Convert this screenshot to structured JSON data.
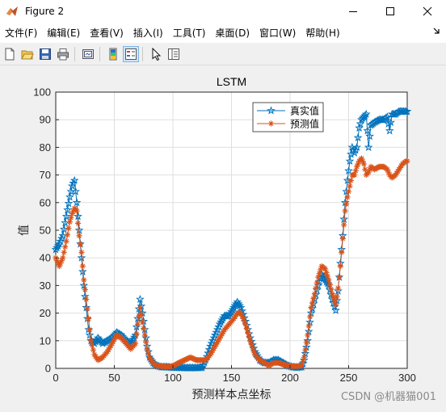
{
  "window": {
    "title": "Figure 2"
  },
  "menu": {
    "items": [
      "文件(F)",
      "编辑(E)",
      "查看(V)",
      "插入(I)",
      "工具(T)",
      "桌面(D)",
      "窗口(W)",
      "帮助(H)"
    ]
  },
  "watermark": "CSDN @机器猫001",
  "chart_data": {
    "type": "line",
    "title": "LSTM",
    "xlabel": "预测样本点坐标",
    "ylabel": "值",
    "xlim": [
      0,
      300
    ],
    "ylim": [
      0,
      100
    ],
    "xticks": [
      0,
      50,
      100,
      150,
      200,
      250,
      300
    ],
    "yticks": [
      0,
      10,
      20,
      30,
      40,
      50,
      60,
      70,
      80,
      90,
      100
    ],
    "grid": true,
    "legend_location": "top-right",
    "series": [
      {
        "name": "真实值",
        "color": "#0072BD",
        "marker": "pentagram",
        "points": [
          [
            0,
            43
          ],
          [
            3,
            45
          ],
          [
            6,
            48
          ],
          [
            9,
            55
          ],
          [
            12,
            62
          ],
          [
            14,
            66
          ],
          [
            16,
            68
          ],
          [
            18,
            60
          ],
          [
            20,
            50
          ],
          [
            22,
            40
          ],
          [
            24,
            30
          ],
          [
            26,
            22
          ],
          [
            28,
            14
          ],
          [
            30,
            10
          ],
          [
            33,
            9
          ],
          [
            36,
            11
          ],
          [
            40,
            9
          ],
          [
            44,
            10
          ],
          [
            48,
            11
          ],
          [
            52,
            13
          ],
          [
            56,
            12
          ],
          [
            60,
            10
          ],
          [
            64,
            9
          ],
          [
            68,
            12
          ],
          [
            70,
            18
          ],
          [
            72,
            25
          ],
          [
            74,
            20
          ],
          [
            76,
            14
          ],
          [
            78,
            8
          ],
          [
            80,
            4
          ],
          [
            83,
            2
          ],
          [
            86,
            1
          ],
          [
            90,
            0.5
          ],
          [
            95,
            0.5
          ],
          [
            100,
            0.3
          ],
          [
            105,
            0.3
          ],
          [
            110,
            0.2
          ],
          [
            115,
            0.2
          ],
          [
            120,
            0.2
          ],
          [
            125,
            0.3
          ],
          [
            128,
            3
          ],
          [
            132,
            8
          ],
          [
            136,
            12
          ],
          [
            140,
            16
          ],
          [
            144,
            19
          ],
          [
            148,
            19
          ],
          [
            152,
            22
          ],
          [
            155,
            24
          ],
          [
            158,
            22
          ],
          [
            162,
            17
          ],
          [
            166,
            11
          ],
          [
            170,
            6
          ],
          [
            174,
            3
          ],
          [
            178,
            2
          ],
          [
            182,
            2
          ],
          [
            186,
            3
          ],
          [
            190,
            3
          ],
          [
            194,
            2
          ],
          [
            198,
            1
          ],
          [
            202,
            0.5
          ],
          [
            206,
            0.3
          ],
          [
            210,
            0.5
          ],
          [
            212,
            3
          ],
          [
            215,
            10
          ],
          [
            218,
            20
          ],
          [
            221,
            25
          ],
          [
            224,
            30
          ],
          [
            227,
            34
          ],
          [
            230,
            32
          ],
          [
            233,
            30
          ],
          [
            236,
            25
          ],
          [
            239,
            21
          ],
          [
            241,
            28
          ],
          [
            243,
            38
          ],
          [
            245,
            48
          ],
          [
            247,
            60
          ],
          [
            249,
            68
          ],
          [
            251,
            75
          ],
          [
            253,
            80
          ],
          [
            255,
            78
          ],
          [
            257,
            80
          ],
          [
            259,
            87
          ],
          [
            261,
            90
          ],
          [
            263,
            91
          ],
          [
            265,
            92
          ],
          [
            267,
            80
          ],
          [
            269,
            88
          ],
          [
            272,
            89
          ],
          [
            276,
            90
          ],
          [
            280,
            90
          ],
          [
            283,
            91
          ],
          [
            285,
            86
          ],
          [
            287,
            92
          ],
          [
            290,
            92
          ],
          [
            293,
            93
          ],
          [
            296,
            93
          ],
          [
            299,
            93
          ]
        ]
      },
      {
        "name": "预测值",
        "color": "#D95319",
        "marker": "asterisk",
        "points": [
          [
            0,
            40
          ],
          [
            3,
            37
          ],
          [
            6,
            40
          ],
          [
            9,
            46
          ],
          [
            12,
            53
          ],
          [
            14,
            56
          ],
          [
            16,
            58
          ],
          [
            18,
            57
          ],
          [
            20,
            48
          ],
          [
            22,
            42
          ],
          [
            24,
            32
          ],
          [
            26,
            25
          ],
          [
            28,
            18
          ],
          [
            30,
            10
          ],
          [
            33,
            5
          ],
          [
            36,
            3
          ],
          [
            40,
            4
          ],
          [
            44,
            6
          ],
          [
            48,
            9
          ],
          [
            52,
            12
          ],
          [
            56,
            11
          ],
          [
            60,
            9
          ],
          [
            64,
            7
          ],
          [
            68,
            9
          ],
          [
            70,
            16
          ],
          [
            72,
            22
          ],
          [
            74,
            17
          ],
          [
            76,
            12
          ],
          [
            78,
            7
          ],
          [
            80,
            4
          ],
          [
            83,
            2
          ],
          [
            86,
            1
          ],
          [
            90,
            0.8
          ],
          [
            95,
            0.6
          ],
          [
            100,
            0.8
          ],
          [
            105,
            2
          ],
          [
            110,
            3
          ],
          [
            115,
            4
          ],
          [
            120,
            3
          ],
          [
            125,
            3
          ],
          [
            128,
            3
          ],
          [
            132,
            5
          ],
          [
            136,
            8
          ],
          [
            140,
            11
          ],
          [
            144,
            14
          ],
          [
            148,
            16
          ],
          [
            152,
            18
          ],
          [
            155,
            20
          ],
          [
            158,
            20
          ],
          [
            162,
            16
          ],
          [
            166,
            10
          ],
          [
            170,
            5
          ],
          [
            174,
            3
          ],
          [
            178,
            2
          ],
          [
            182,
            1
          ],
          [
            186,
            2
          ],
          [
            190,
            2
          ],
          [
            194,
            1.5
          ],
          [
            198,
            1
          ],
          [
            202,
            0.8
          ],
          [
            206,
            0.8
          ],
          [
            210,
            1
          ],
          [
            212,
            4
          ],
          [
            215,
            12
          ],
          [
            218,
            22
          ],
          [
            221,
            27
          ],
          [
            224,
            33
          ],
          [
            227,
            37
          ],
          [
            230,
            36
          ],
          [
            233,
            32
          ],
          [
            236,
            27
          ],
          [
            239,
            23
          ],
          [
            241,
            29
          ],
          [
            243,
            37
          ],
          [
            245,
            47
          ],
          [
            247,
            57
          ],
          [
            249,
            62
          ],
          [
            251,
            66
          ],
          [
            253,
            70
          ],
          [
            255,
            70
          ],
          [
            257,
            73
          ],
          [
            259,
            75
          ],
          [
            261,
            76
          ],
          [
            263,
            74
          ],
          [
            265,
            70
          ],
          [
            267,
            71
          ],
          [
            269,
            73
          ],
          [
            272,
            72
          ],
          [
            276,
            73
          ],
          [
            280,
            73
          ],
          [
            283,
            72
          ],
          [
            285,
            70
          ],
          [
            287,
            69
          ],
          [
            290,
            70
          ],
          [
            293,
            72
          ],
          [
            296,
            74
          ],
          [
            299,
            75
          ]
        ]
      }
    ]
  }
}
